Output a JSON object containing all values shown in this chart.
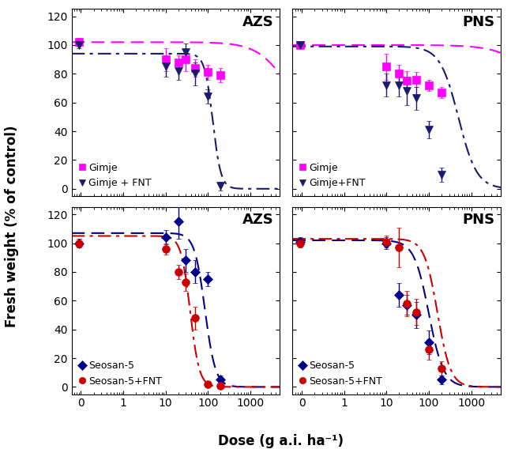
{
  "panels": [
    {
      "label": "AZS",
      "row": 0,
      "col": 0,
      "series": [
        {
          "name": "Gimje",
          "marker": "s",
          "color": "#FF00FF",
          "line_style": "--",
          "x": [
            0.09,
            10,
            20,
            30,
            50,
            100,
            200
          ],
          "y": [
            102,
            90,
            88,
            90,
            84,
            81,
            79
          ],
          "yerr": [
            3,
            8,
            5,
            8,
            6,
            5,
            5
          ],
          "curve_params": {
            "top": 102,
            "bottom": 40,
            "ED50": 8000,
            "slope": 1.2
          }
        },
        {
          "name": "Gimje + FNT",
          "marker": "v",
          "color": "#1a1a6e",
          "line_style": "-.",
          "x": [
            0.09,
            10,
            20,
            30,
            50,
            100,
            200
          ],
          "y": [
            100,
            85,
            82,
            95,
            80,
            64,
            2
          ],
          "yerr": [
            2,
            7,
            6,
            6,
            8,
            5,
            3
          ],
          "curve_params": {
            "top": 94,
            "bottom": 0,
            "ED50": 130,
            "slope": 4.5
          }
        }
      ],
      "ylim": [
        -5,
        125
      ],
      "yticks": [
        0,
        20,
        40,
        60,
        80,
        100,
        120
      ],
      "show_xticklabels": false,
      "show_yticklabels": true,
      "legend_loc": "lower left"
    },
    {
      "label": "PNS",
      "row": 0,
      "col": 1,
      "series": [
        {
          "name": "Gimje",
          "marker": "s",
          "color": "#FF00FF",
          "line_style": "--",
          "x": [
            0.09,
            10,
            20,
            30,
            50,
            100,
            200
          ],
          "y": [
            100,
            85,
            80,
            75,
            76,
            72,
            67
          ],
          "yerr": [
            2,
            9,
            6,
            7,
            5,
            4,
            4
          ],
          "curve_params": {
            "top": 100,
            "bottom": 40,
            "ED50": 50000,
            "slope": 1.0
          }
        },
        {
          "name": "Gimje+FNT",
          "marker": "v",
          "color": "#1a1a6e",
          "line_style": "-.",
          "x": [
            0.09,
            10,
            20,
            30,
            50,
            100,
            200
          ],
          "y": [
            100,
            72,
            72,
            68,
            63,
            41,
            10
          ],
          "yerr": [
            2,
            8,
            8,
            10,
            8,
            6,
            5
          ],
          "curve_params": {
            "top": 99,
            "bottom": 0,
            "ED50": 500,
            "slope": 2.0
          }
        }
      ],
      "ylim": [
        -5,
        125
      ],
      "yticks": [
        0,
        20,
        40,
        60,
        80,
        100,
        120
      ],
      "show_xticklabels": false,
      "show_yticklabels": false,
      "legend_loc": "lower left"
    },
    {
      "label": "AZS",
      "row": 1,
      "col": 0,
      "series": [
        {
          "name": "Seosan-5",
          "marker": "D",
          "color": "#00008B",
          "line_style": "--",
          "x": [
            0.09,
            10,
            20,
            30,
            50,
            100,
            200
          ],
          "y": [
            100,
            104,
            115,
            88,
            80,
            75,
            5
          ],
          "yerr": [
            3,
            5,
            12,
            8,
            8,
            5,
            3
          ],
          "curve_params": {
            "top": 107,
            "bottom": 0,
            "ED50": 85,
            "slope": 3.5
          }
        },
        {
          "name": "Seosan-5+FNT",
          "marker": "o",
          "color": "#CC0000",
          "line_style": "-.",
          "x": [
            0.09,
            10,
            20,
            30,
            50,
            100,
            200
          ],
          "y": [
            100,
            96,
            80,
            73,
            48,
            2,
            1
          ],
          "yerr": [
            3,
            4,
            5,
            6,
            8,
            2,
            1
          ],
          "curve_params": {
            "top": 105,
            "bottom": 0,
            "ED50": 38,
            "slope": 4.0
          }
        }
      ],
      "ylim": [
        -5,
        125
      ],
      "yticks": [
        0,
        20,
        40,
        60,
        80,
        100,
        120
      ],
      "show_xticklabels": true,
      "show_yticklabels": true,
      "legend_loc": "lower left"
    },
    {
      "label": "PNS",
      "row": 1,
      "col": 1,
      "series": [
        {
          "name": "Seosan-5",
          "marker": "D",
          "color": "#00008B",
          "line_style": "--",
          "x": [
            0.09,
            10,
            20,
            30,
            50,
            100,
            200
          ],
          "y": [
            101,
            100,
            64,
            57,
            50,
            31,
            5
          ],
          "yerr": [
            3,
            4,
            8,
            7,
            9,
            8,
            3
          ],
          "curve_params": {
            "top": 102,
            "bottom": 0,
            "ED50": 100,
            "slope": 2.5
          }
        },
        {
          "name": "Seosan-5+FNT",
          "marker": "o",
          "color": "#CC0000",
          "line_style": "-.",
          "x": [
            0.09,
            10,
            20,
            30,
            50,
            100,
            200
          ],
          "y": [
            100,
            101,
            97,
            58,
            52,
            26,
            13
          ],
          "yerr": [
            3,
            4,
            14,
            9,
            9,
            7,
            5
          ],
          "curve_params": {
            "top": 103,
            "bottom": 0,
            "ED50": 160,
            "slope": 2.8
          }
        }
      ],
      "ylim": [
        -5,
        125
      ],
      "yticks": [
        0,
        20,
        40,
        60,
        80,
        100,
        120
      ],
      "show_xticklabels": true,
      "show_yticklabels": false,
      "legend_loc": "lower left"
    }
  ],
  "xlabel": "Dose (g a.i. ha⁻¹)",
  "ylabel": "Fresh weight (% of control)",
  "title_fontsize": 13,
  "label_fontsize": 12,
  "tick_fontsize": 10,
  "legend_fontsize": 9,
  "xlim": [
    0.06,
    5000
  ],
  "xticks": [
    0.1,
    1,
    10,
    100,
    1000
  ],
  "xticklabels": [
    "0",
    "1",
    "10",
    "100",
    "1000"
  ]
}
